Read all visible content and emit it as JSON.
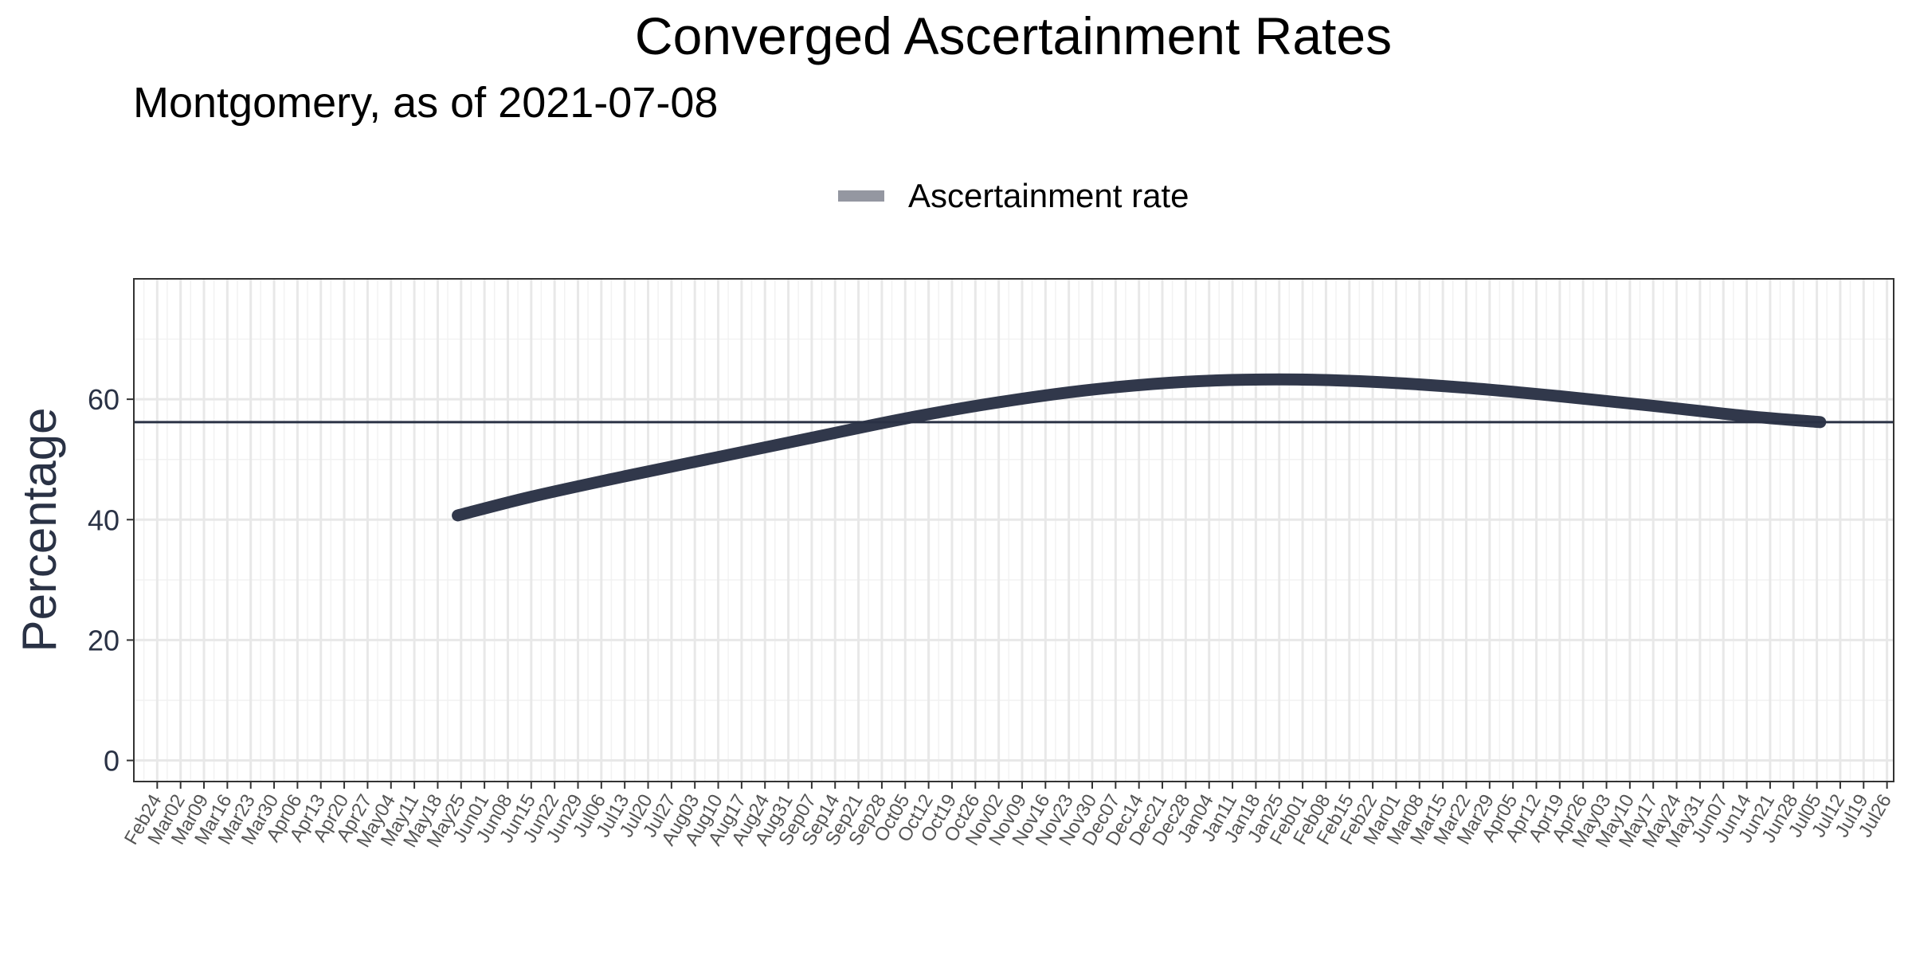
{
  "chart_data": {
    "type": "line",
    "title": "Converged Ascertainment Rates",
    "subtitle": "Montgomery, as of 2021-07-08",
    "xlabel": "",
    "ylabel": "Percentage",
    "legend": {
      "position": "top",
      "entries": [
        "Ascertainment rate"
      ]
    },
    "x_ticks": [
      "Feb24",
      "Mar02",
      "Mar09",
      "Mar16",
      "Mar23",
      "Mar30",
      "Apr06",
      "Apr13",
      "Apr20",
      "Apr27",
      "May04",
      "May11",
      "May18",
      "May25",
      "Jun01",
      "Jun08",
      "Jun15",
      "Jun22",
      "Jun29",
      "Jul06",
      "Jul13",
      "Jul20",
      "Jul27",
      "Aug03",
      "Aug10",
      "Aug17",
      "Aug24",
      "Aug31",
      "Sep07",
      "Sep14",
      "Sep21",
      "Sep28",
      "Oct05",
      "Oct12",
      "Oct19",
      "Oct26",
      "Nov02",
      "Nov09",
      "Nov16",
      "Nov23",
      "Nov30",
      "Dec07",
      "Dec14",
      "Dec21",
      "Dec28",
      "Jan04",
      "Jan11",
      "Jan18",
      "Jan25",
      "Feb01",
      "Feb08",
      "Feb15",
      "Feb22",
      "Mar01",
      "Mar08",
      "Mar15",
      "Mar22",
      "Mar29",
      "Apr05",
      "Apr12",
      "Apr19",
      "Apr26",
      "May03",
      "May10",
      "May17",
      "May24",
      "May31",
      "Jun07",
      "Jun14",
      "Jun21",
      "Jun28",
      "Jul05",
      "Jul12",
      "Jul19",
      "Jul26"
    ],
    "y_ticks": [
      0,
      20,
      40,
      60
    ],
    "ylim": [
      -3.5,
      80
    ],
    "xlim": [
      "2020-02-17",
      "2021-07-28"
    ],
    "grid": true,
    "reference_line": {
      "y": 56.2
    },
    "series": [
      {
        "name": "Ascertainment rate",
        "color": "#2a3245",
        "x": [
          "2020-05-24",
          "2020-06-15",
          "2020-07-13",
          "2020-08-10",
          "2020-09-07",
          "2020-10-05",
          "2020-11-02",
          "2020-11-30",
          "2020-12-28",
          "2021-01-25",
          "2021-02-22",
          "2021-03-22",
          "2021-04-19",
          "2021-05-17",
          "2021-06-14",
          "2021-07-06"
        ],
        "y": [
          40.7,
          43.8,
          47.2,
          50.4,
          53.6,
          56.8,
          59.5,
          61.6,
          62.9,
          63.3,
          62.9,
          61.9,
          60.5,
          58.9,
          57.2,
          56.2
        ]
      }
    ]
  }
}
